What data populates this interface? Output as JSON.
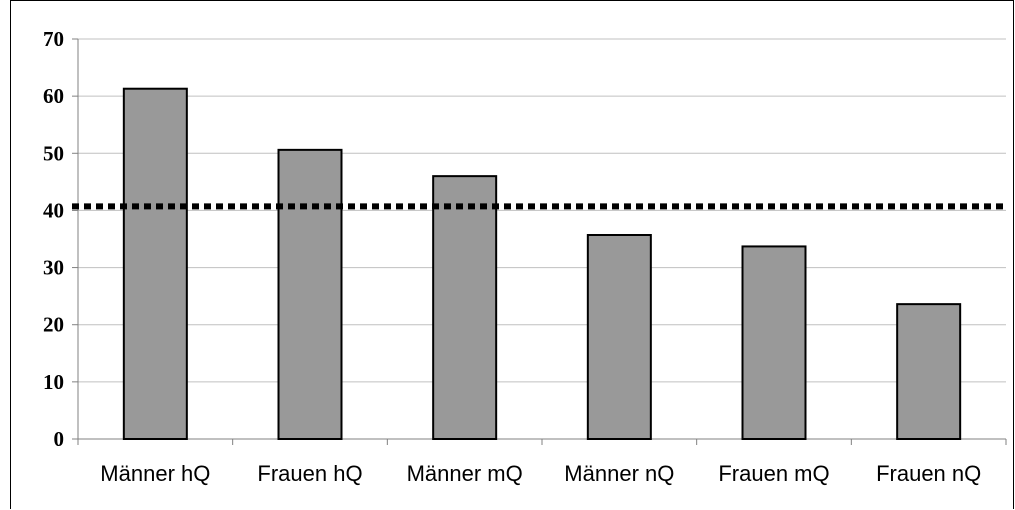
{
  "chart_data": {
    "type": "bar",
    "title": "",
    "xlabel": "",
    "ylabel": "",
    "categories": [
      "Männer hQ",
      "Frauen hQ",
      "Männer mQ",
      "Männer nQ",
      "Frauen mQ",
      "Frauen nQ"
    ],
    "values": [
      61.3,
      50.6,
      46.0,
      35.7,
      33.7,
      23.6
    ],
    "ylim": [
      0,
      70
    ],
    "yticks": [
      "0",
      "10",
      "20",
      "30",
      "40",
      "50",
      "60",
      "70"
    ],
    "reference_line": {
      "value": 40.7,
      "style": "dotted"
    },
    "grid": true,
    "legend": "none",
    "colors": {
      "bar_fill": "#999999",
      "bar_stroke": "#000000",
      "grid": "#c0c0c0",
      "reference_line": "#000000"
    }
  }
}
